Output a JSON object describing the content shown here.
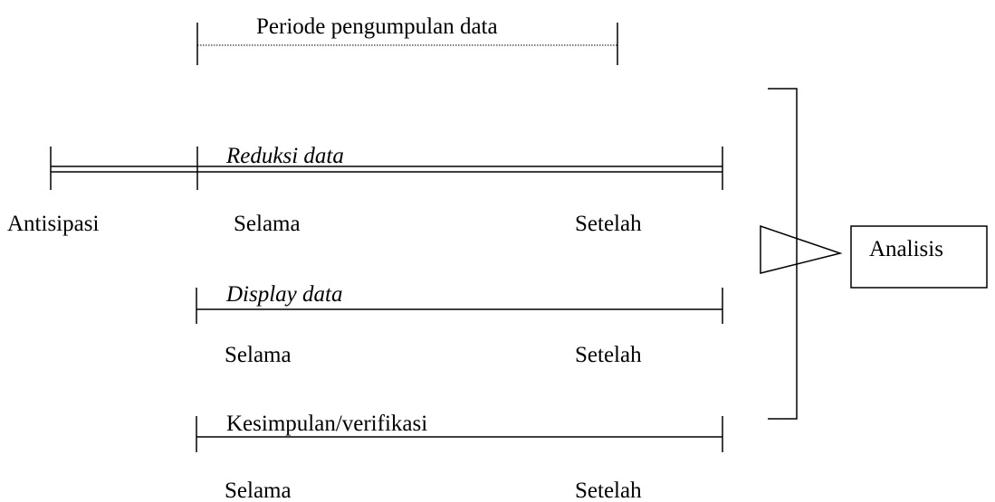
{
  "period": "Periode pengumpulan data",
  "anticipation": "Antisipasi",
  "components": [
    {
      "label": "Reduksi data",
      "during": "Selama",
      "after": "Setelah"
    },
    {
      "label": "Display data",
      "during": "Selama",
      "after": "Setelah"
    },
    {
      "label": "Kesimpulan/verifikasi",
      "during": "Selama",
      "after": "Setelah"
    }
  ],
  "result": "Analisis"
}
